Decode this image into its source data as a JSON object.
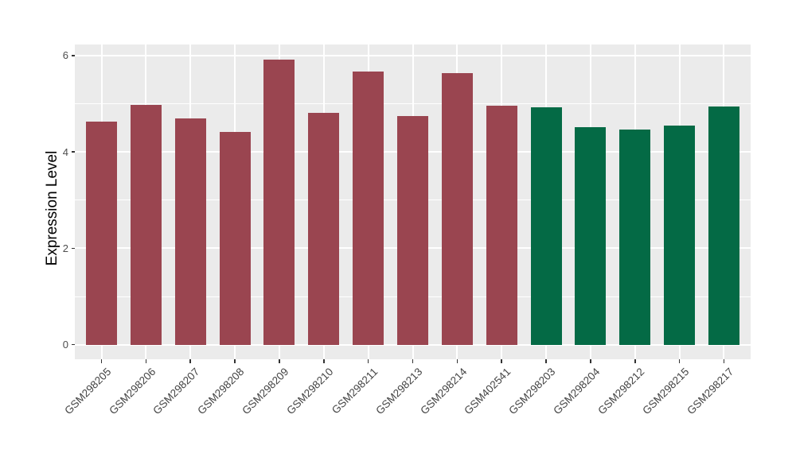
{
  "chart_data": {
    "type": "bar",
    "title": "",
    "xlabel": "",
    "ylabel": "Expression Level",
    "categories": [
      "GSM298205",
      "GSM298206",
      "GSM298207",
      "GSM298208",
      "GSM298209",
      "GSM298210",
      "GSM298211",
      "GSM298213",
      "GSM298214",
      "GSM402541",
      "GSM298203",
      "GSM298204",
      "GSM298212",
      "GSM298215",
      "GSM298217"
    ],
    "values": [
      4.62,
      4.97,
      4.69,
      4.42,
      5.92,
      4.81,
      5.66,
      4.74,
      5.63,
      4.95,
      4.93,
      4.52,
      4.46,
      4.54,
      4.94
    ],
    "bar_colors": [
      "#9A4550",
      "#9A4550",
      "#9A4550",
      "#9A4550",
      "#9A4550",
      "#9A4550",
      "#9A4550",
      "#9A4550",
      "#9A4550",
      "#9A4550",
      "#046A45",
      "#046A45",
      "#046A45",
      "#046A45",
      "#046A45"
    ],
    "group_colors": {
      "group1": "#9A4550",
      "group2": "#046A45"
    },
    "ylim": [
      0,
      6.23
    ],
    "yticks": [
      0,
      2,
      4,
      6
    ],
    "yticks_minor": [
      1,
      3,
      5
    ],
    "grid": true,
    "legend": "none",
    "panel_bg": "#EBEBEB",
    "grid_color": "#FFFFFF"
  }
}
